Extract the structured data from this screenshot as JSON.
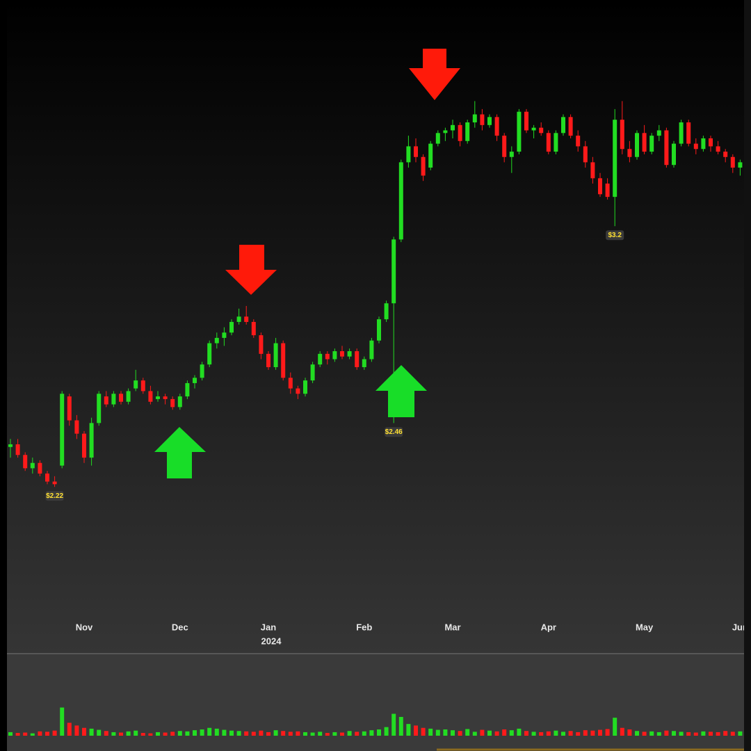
{
  "chart_data": {
    "type": "candlestick",
    "up_color": "#22dd22",
    "down_color": "#ff1a1a",
    "ylim": [
      1.75,
      4.05
    ],
    "volume_ylim": [
      0,
      800
    ],
    "year_label": "2024",
    "categories": [
      null,
      null,
      null,
      null,
      null,
      null,
      null,
      null,
      null,
      null,
      "Nov",
      null,
      null,
      null,
      null,
      null,
      null,
      null,
      null,
      null,
      null,
      null,
      null,
      "Dec",
      null,
      null,
      null,
      null,
      null,
      null,
      null,
      null,
      null,
      null,
      null,
      "Jan",
      null,
      null,
      null,
      null,
      null,
      null,
      null,
      null,
      null,
      null,
      null,
      null,
      "Feb",
      null,
      null,
      null,
      null,
      null,
      null,
      null,
      null,
      null,
      null,
      null,
      "Mar",
      null,
      null,
      null,
      null,
      null,
      null,
      null,
      null,
      null,
      null,
      null,
      null,
      "Apr",
      null,
      null,
      null,
      null,
      null,
      null,
      null,
      null,
      null,
      null,
      null,
      null,
      "May",
      null,
      null,
      null,
      null,
      null,
      null,
      null,
      null,
      null,
      null,
      null,
      null,
      "Jun"
    ],
    "ohlc": [
      [
        2.37,
        2.4,
        2.33,
        2.38
      ],
      [
        2.38,
        2.4,
        2.33,
        2.34
      ],
      [
        2.34,
        2.35,
        2.28,
        2.29
      ],
      [
        2.29,
        2.33,
        2.27,
        2.31
      ],
      [
        2.31,
        2.32,
        2.26,
        2.27
      ],
      [
        2.27,
        2.28,
        2.23,
        2.24
      ],
      [
        2.24,
        2.26,
        2.22,
        2.23
      ],
      [
        2.3,
        2.58,
        2.29,
        2.57
      ],
      [
        2.56,
        2.57,
        2.45,
        2.47
      ],
      [
        2.47,
        2.49,
        2.4,
        2.42
      ],
      [
        2.42,
        2.43,
        2.31,
        2.33
      ],
      [
        2.33,
        2.48,
        2.3,
        2.46
      ],
      [
        2.46,
        2.58,
        2.45,
        2.57
      ],
      [
        2.56,
        2.58,
        2.52,
        2.53
      ],
      [
        2.53,
        2.58,
        2.52,
        2.57
      ],
      [
        2.57,
        2.58,
        2.53,
        2.54
      ],
      [
        2.54,
        2.59,
        2.53,
        2.58
      ],
      [
        2.59,
        2.66,
        2.58,
        2.62
      ],
      [
        2.62,
        2.63,
        2.57,
        2.58
      ],
      [
        2.58,
        2.6,
        2.53,
        2.54
      ],
      [
        2.55,
        2.58,
        2.54,
        2.56
      ],
      [
        2.56,
        2.57,
        2.53,
        2.55
      ],
      [
        2.55,
        2.56,
        2.51,
        2.52
      ],
      [
        2.52,
        2.57,
        2.51,
        2.56
      ],
      [
        2.56,
        2.62,
        2.55,
        2.61
      ],
      [
        2.61,
        2.64,
        2.59,
        2.63
      ],
      [
        2.63,
        2.69,
        2.62,
        2.68
      ],
      [
        2.68,
        2.77,
        2.67,
        2.76
      ],
      [
        2.76,
        2.8,
        2.74,
        2.78
      ],
      [
        2.78,
        2.82,
        2.75,
        2.8
      ],
      [
        2.8,
        2.85,
        2.79,
        2.84
      ],
      [
        2.84,
        2.89,
        2.83,
        2.86
      ],
      [
        2.86,
        2.9,
        2.83,
        2.84
      ],
      [
        2.84,
        2.85,
        2.78,
        2.79
      ],
      [
        2.79,
        2.8,
        2.7,
        2.72
      ],
      [
        2.72,
        2.73,
        2.66,
        2.67
      ],
      [
        2.67,
        2.78,
        2.66,
        2.76
      ],
      [
        2.76,
        2.77,
        2.62,
        2.63
      ],
      [
        2.63,
        2.65,
        2.57,
        2.59
      ],
      [
        2.59,
        2.6,
        2.55,
        2.57
      ],
      [
        2.57,
        2.63,
        2.56,
        2.62
      ],
      [
        2.62,
        2.69,
        2.61,
        2.68
      ],
      [
        2.68,
        2.73,
        2.67,
        2.72
      ],
      [
        2.72,
        2.73,
        2.68,
        2.7
      ],
      [
        2.7,
        2.74,
        2.69,
        2.73
      ],
      [
        2.73,
        2.75,
        2.7,
        2.71
      ],
      [
        2.71,
        2.74,
        2.7,
        2.73
      ],
      [
        2.73,
        2.74,
        2.66,
        2.67
      ],
      [
        2.67,
        2.71,
        2.66,
        2.7
      ],
      [
        2.7,
        2.78,
        2.69,
        2.77
      ],
      [
        2.77,
        2.86,
        2.76,
        2.85
      ],
      [
        2.85,
        2.92,
        2.84,
        2.91
      ],
      [
        2.91,
        3.16,
        2.46,
        3.15
      ],
      [
        3.15,
        3.45,
        3.14,
        3.44
      ],
      [
        3.44,
        3.54,
        3.42,
        3.5
      ],
      [
        3.5,
        3.53,
        3.44,
        3.46
      ],
      [
        3.46,
        3.47,
        3.37,
        3.39
      ],
      [
        3.42,
        3.52,
        3.41,
        3.51
      ],
      [
        3.51,
        3.56,
        3.5,
        3.55
      ],
      [
        3.55,
        3.57,
        3.52,
        3.56
      ],
      [
        3.56,
        3.6,
        3.53,
        3.58
      ],
      [
        3.58,
        3.59,
        3.5,
        3.52
      ],
      [
        3.52,
        3.6,
        3.51,
        3.59
      ],
      [
        3.59,
        3.67,
        3.57,
        3.62
      ],
      [
        3.62,
        3.64,
        3.56,
        3.58
      ],
      [
        3.58,
        3.62,
        3.57,
        3.61
      ],
      [
        3.61,
        3.62,
        3.52,
        3.54
      ],
      [
        3.54,
        3.55,
        3.44,
        3.46
      ],
      [
        3.46,
        3.5,
        3.4,
        3.48
      ],
      [
        3.48,
        3.64,
        3.47,
        3.63
      ],
      [
        3.63,
        3.64,
        3.55,
        3.56
      ],
      [
        3.56,
        3.58,
        3.53,
        3.57
      ],
      [
        3.57,
        3.59,
        3.54,
        3.55
      ],
      [
        3.55,
        3.56,
        3.47,
        3.48
      ],
      [
        3.48,
        3.56,
        3.47,
        3.55
      ],
      [
        3.55,
        3.62,
        3.54,
        3.61
      ],
      [
        3.61,
        3.62,
        3.53,
        3.54
      ],
      [
        3.54,
        3.56,
        3.48,
        3.5
      ],
      [
        3.5,
        3.52,
        3.42,
        3.44
      ],
      [
        3.44,
        3.46,
        3.36,
        3.38
      ],
      [
        3.38,
        3.4,
        3.31,
        3.32
      ],
      [
        3.36,
        3.38,
        3.3,
        3.31
      ],
      [
        3.31,
        3.64,
        3.2,
        3.6
      ],
      [
        3.6,
        3.67,
        3.47,
        3.49
      ],
      [
        3.49,
        3.52,
        3.44,
        3.46
      ],
      [
        3.46,
        3.56,
        3.45,
        3.55
      ],
      [
        3.55,
        3.58,
        3.47,
        3.48
      ],
      [
        3.48,
        3.55,
        3.47,
        3.54
      ],
      [
        3.54,
        3.58,
        3.52,
        3.56
      ],
      [
        3.56,
        3.57,
        3.42,
        3.43
      ],
      [
        3.43,
        3.52,
        3.42,
        3.51
      ],
      [
        3.51,
        3.6,
        3.5,
        3.59
      ],
      [
        3.59,
        3.6,
        3.5,
        3.51
      ],
      [
        3.51,
        3.53,
        3.47,
        3.49
      ],
      [
        3.49,
        3.54,
        3.48,
        3.53
      ],
      [
        3.53,
        3.54,
        3.48,
        3.5
      ],
      [
        3.5,
        3.52,
        3.47,
        3.48
      ],
      [
        3.48,
        3.49,
        3.44,
        3.46
      ],
      [
        3.46,
        3.47,
        3.4,
        3.42
      ],
      [
        3.42,
        3.45,
        3.39,
        3.44
      ]
    ],
    "low_labels": [
      null,
      null,
      null,
      null,
      null,
      null,
      "$2.22",
      null,
      null,
      null,
      null,
      null,
      null,
      null,
      null,
      null,
      null,
      null,
      null,
      null,
      null,
      null,
      null,
      null,
      null,
      null,
      null,
      null,
      null,
      null,
      null,
      null,
      null,
      null,
      null,
      null,
      null,
      null,
      null,
      null,
      null,
      null,
      null,
      null,
      null,
      null,
      null,
      null,
      null,
      null,
      null,
      null,
      "$2.46",
      null,
      null,
      null,
      null,
      null,
      null,
      null,
      null,
      null,
      null,
      null,
      null,
      null,
      null,
      null,
      null,
      null,
      null,
      null,
      null,
      null,
      null,
      null,
      null,
      null,
      null,
      null,
      null,
      null,
      "$3.2",
      null,
      null,
      null,
      null,
      null,
      null,
      null,
      null,
      null,
      null,
      null,
      null,
      null,
      null,
      null,
      null,
      null
    ],
    "volume": [
      90,
      70,
      80,
      60,
      110,
      100,
      130,
      720,
      330,
      260,
      200,
      180,
      150,
      120,
      90,
      80,
      110,
      130,
      70,
      60,
      90,
      80,
      100,
      120,
      110,
      140,
      160,
      200,
      180,
      150,
      130,
      120,
      110,
      100,
      130,
      90,
      140,
      120,
      100,
      110,
      90,
      80,
      100,
      70,
      90,
      80,
      120,
      100,
      110,
      140,
      160,
      220,
      560,
      480,
      300,
      260,
      200,
      180,
      150,
      160,
      140,
      120,
      170,
      100,
      150,
      130,
      110,
      160,
      140,
      180,
      120,
      100,
      90,
      110,
      130,
      100,
      120,
      90,
      140,
      130,
      150,
      170,
      460,
      200,
      160,
      120,
      100,
      110,
      90,
      130,
      120,
      100,
      90,
      80,
      110,
      100,
      90,
      120,
      100,
      110
    ]
  }
}
